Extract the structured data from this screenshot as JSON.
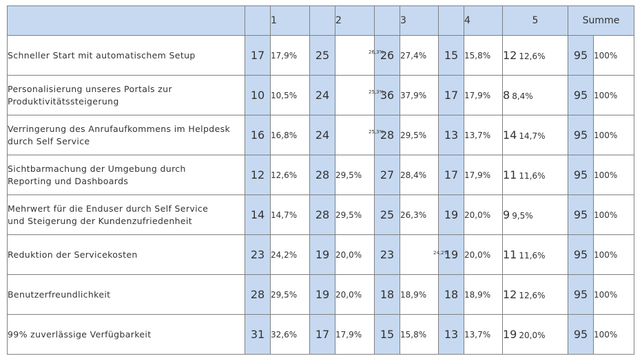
{
  "headers": {
    "blank": "",
    "c1": "1",
    "c2": "2",
    "c3": "3",
    "c4": "4",
    "c5": "5",
    "summe": "Summe"
  },
  "rows": [
    {
      "label1": "Schneller Start mit automatischem Setup",
      "label2": "",
      "n1": "17",
      "p1": "17,9%",
      "n2": "25",
      "p2": "26,3%",
      "n3": "26",
      "p3": "27,4%",
      "n4": "15",
      "p4": "15,8%",
      "n5": "12",
      "p5": "12,6%",
      "sum": "95",
      "sump": "100%"
    },
    {
      "label1": "Personalisierung unseres Portals zur",
      "label2": "Produktivitätssteigerung",
      "n1": "10",
      "p1": "10,5%",
      "n2": "24",
      "p2": "25,3%",
      "n3": "36",
      "p3": "37,9%",
      "n4": "17",
      "p4": "17,9%",
      "n5": "8",
      "p5": "8,4%",
      "sum": "95",
      "sump": "100%"
    },
    {
      "label1": "Verringerung des Anrufaufkommens im Helpdesk",
      "label2": "durch Self Service",
      "n1": "16",
      "p1": "16,8%",
      "n2": "24",
      "p2": "25,3%",
      "n3": "28",
      "p3": "29,5%",
      "n4": "13",
      "p4": "13,7%",
      "n5": "14",
      "p5": "14,7%",
      "sum": "95",
      "sump": "100%"
    },
    {
      "label1": "Sichtbarmachung der Umgebung durch",
      "label2": "Reporting und Dashboards",
      "n1": "12",
      "p1": "12,6%",
      "n2": "28",
      "p2": "29,5%",
      "n3": "27",
      "p3": "28,4%",
      "n4": "17",
      "p4": "17,9%",
      "n5": "11",
      "p5": "11,6%",
      "sum": "95",
      "sump": "100%"
    },
    {
      "label1": "Mehrwert für die Enduser durch Self Service",
      "label2": "und Steigerung der Kundenzufriedenheit",
      "n1": "14",
      "p1": "14,7%",
      "n2": "28",
      "p2": "29,5%",
      "n3": "25",
      "p3": "26,3%",
      "n4": "19",
      "p4": "20,0%",
      "n5": "9",
      "p5": "9,5%",
      "sum": "95",
      "sump": "100%"
    },
    {
      "label1": "Reduktion der Servicekosten",
      "label2": "",
      "n1": "23",
      "p1": "24,2%",
      "n2": "19",
      "p2": "20,0%",
      "n3": "23",
      "p3": "24,2%",
      "n4": "19",
      "p4": "20,0%",
      "n5": "11",
      "p5": "11,6%",
      "sum": "95",
      "sump": "100%"
    },
    {
      "label1": "Benutzerfreundlichkeit",
      "label2": "",
      "n1": "28",
      "p1": "29,5%",
      "n2": "19",
      "p2": "20,0%",
      "n3": "18",
      "p3": "18,9%",
      "n4": "18",
      "p4": "18,9%",
      "n5": "12",
      "p5": "12,6%",
      "sum": "95",
      "sump": "100%"
    },
    {
      "label1": "99% zuverlässige Verfügbarkeit",
      "label2": "",
      "n1": "31",
      "p1": "32,6%",
      "n2": "17",
      "p2": "17,9%",
      "n3": "15",
      "p3": "15,8%",
      "n4": "13",
      "p4": "13,7%",
      "n5": "19",
      "p5": "20,0%",
      "sum": "95",
      "sump": "100%"
    }
  ],
  "colors": {
    "header_bg": "#c6d9f1",
    "count_bg": "#c6d9f1",
    "border": "#7f7f7f",
    "text": "#333333"
  }
}
